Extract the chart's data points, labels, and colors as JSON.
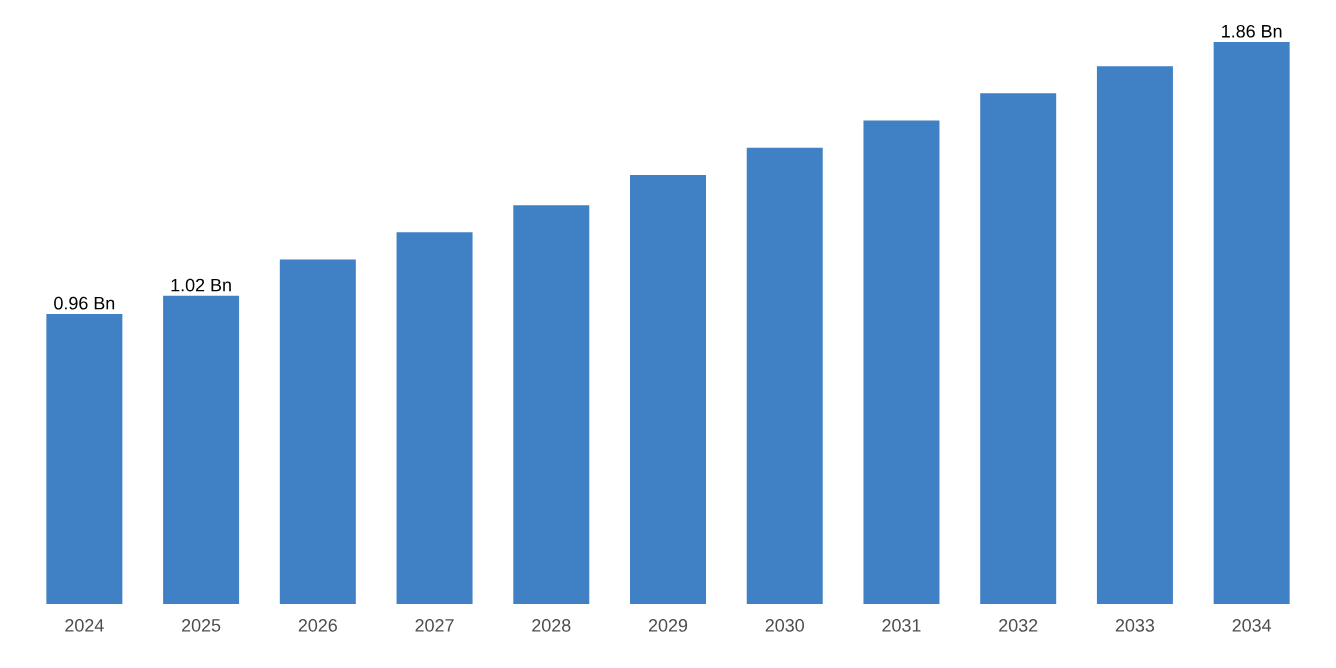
{
  "chart_data": {
    "type": "bar",
    "categories": [
      "2024",
      "2025",
      "2026",
      "2027",
      "2028",
      "2029",
      "2030",
      "2031",
      "2032",
      "2033",
      "2034"
    ],
    "values": [
      0.96,
      1.02,
      1.14,
      1.23,
      1.32,
      1.42,
      1.51,
      1.6,
      1.69,
      1.78,
      1.86
    ],
    "value_labels": [
      "0.96 Bn",
      "1.02 Bn",
      null,
      null,
      null,
      null,
      null,
      null,
      null,
      null,
      "1.86 Bn"
    ],
    "color": "#4080c4",
    "ylim": [
      0,
      1.86
    ],
    "tick_labels": "x"
  }
}
